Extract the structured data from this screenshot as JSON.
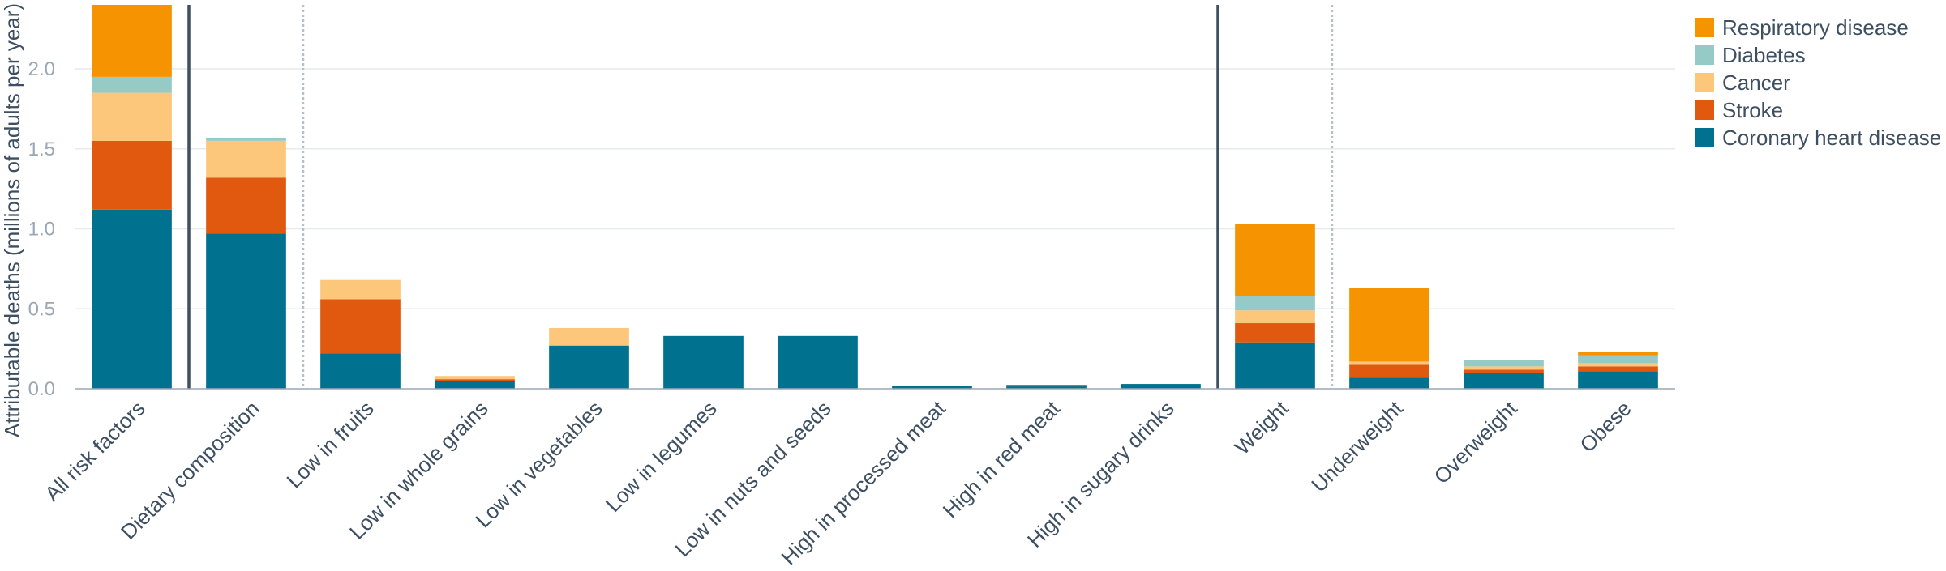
{
  "chart_data": {
    "type": "bar",
    "stacked": true,
    "title": "",
    "xlabel": "",
    "ylabel": "Attributable deaths (millions of adults per year)",
    "ylim": [
      0,
      2.4
    ],
    "yticks": [
      "0.0",
      "0.5",
      "1.0",
      "1.5",
      "2.0"
    ],
    "grid": true,
    "legend_position": "top-right",
    "categories": [
      "All risk factors",
      "Dietary composition",
      "Low in fruits",
      "Low in whole grains",
      "Low in vegetables",
      "Low in legumes",
      "Low in nuts and seeds",
      "High in processed meat",
      "High in red meat",
      "High in sugary drinks",
      "Weight",
      "Underweight",
      "Overweight",
      "Obese"
    ],
    "series": [
      {
        "name": "Coronary heart disease",
        "color": "#00728f",
        "values": [
          1.12,
          0.97,
          0.22,
          0.05,
          0.27,
          0.33,
          0.33,
          0.02,
          0.015,
          0.03,
          0.29,
          0.07,
          0.1,
          0.11
        ]
      },
      {
        "name": "Stroke",
        "color": "#e0590e",
        "values": [
          0.43,
          0.35,
          0.34,
          0.01,
          0.0,
          0.0,
          0.0,
          0.0,
          0.01,
          0.0,
          0.12,
          0.08,
          0.02,
          0.03
        ]
      },
      {
        "name": "Cancer",
        "color": "#fcc77a",
        "values": [
          0.3,
          0.23,
          0.12,
          0.02,
          0.11,
          0.0,
          0.0,
          0.0,
          0.0,
          0.0,
          0.08,
          0.02,
          0.02,
          0.02
        ]
      },
      {
        "name": "Diabetes",
        "color": "#96cac7",
        "values": [
          0.1,
          0.02,
          0.0,
          0.0,
          0.0,
          0.0,
          0.0,
          0.0,
          0.0,
          0.0,
          0.09,
          0.0,
          0.04,
          0.05
        ]
      },
      {
        "name": "Respiratory disease",
        "color": "#f59300",
        "values": [
          0.45,
          0.0,
          0.0,
          0.0,
          0.0,
          0.0,
          0.0,
          0.0,
          0.0,
          0.0,
          0.45,
          0.46,
          0.0,
          0.02
        ]
      }
    ],
    "legend_order": [
      "Respiratory disease",
      "Diabetes",
      "Cancer",
      "Stroke",
      "Coronary heart disease"
    ]
  }
}
